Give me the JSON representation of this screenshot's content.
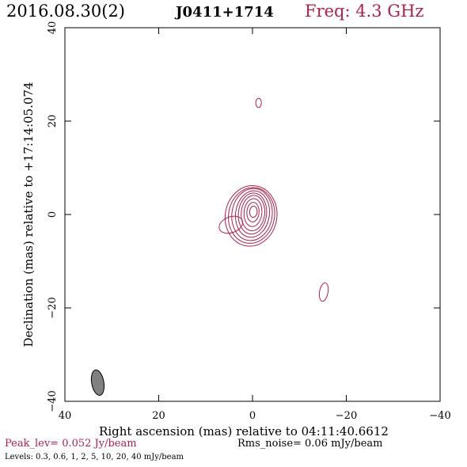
{
  "header": {
    "date": "2016.08.30(2)",
    "source": "J0411+1714",
    "freq": "Freq: 4.3 GHz"
  },
  "footer": {
    "peak": "Peak_lev=  0.052 Jy/beam",
    "rms": "Rms_noise= 0.06 mJy/beam",
    "levels": "Levels: 0.3, 0.6,    1,    2,    5,  10,   20,  40 mJy/beam"
  },
  "colors": {
    "contour": "#b0204a",
    "beam": "#808080"
  },
  "chart_data": {
    "type": "contour",
    "xlabel": "Right ascension (mas) relative to 04:11:40.6612",
    "ylabel": "Declination (mas) relative to +17:14:05.074",
    "xlim": [
      40,
      -40
    ],
    "ylim": [
      -40,
      40
    ],
    "x_ticks": [
      40,
      20,
      0,
      -20,
      -40
    ],
    "y_ticks": [
      -40,
      -20,
      0,
      20,
      40
    ],
    "x_tick_labels": [
      "40",
      "20",
      "0",
      "−20",
      "−40"
    ],
    "y_tick_labels": [
      "−40",
      "−20",
      "0",
      "20",
      "40"
    ],
    "beam": {
      "x": 33,
      "y": -36,
      "major_mas": 5.5,
      "minor_mas": 2.6,
      "pa_deg": -10
    },
    "contours": [
      {
        "x": 0.3,
        "y": -0.3,
        "rx": 5.5,
        "ry": 6.5,
        "rot": 10
      },
      {
        "x": 0.2,
        "y": -0.2,
        "rx": 4.9,
        "ry": 6.0,
        "rot": 10
      },
      {
        "x": 0.1,
        "y": 0.0,
        "rx": 4.3,
        "ry": 5.6,
        "rot": 8
      },
      {
        "x": 0.0,
        "y": 0.1,
        "rx": 3.6,
        "ry": 5.0,
        "rot": 8
      },
      {
        "x": 0.0,
        "y": 0.2,
        "rx": 3.0,
        "ry": 4.4,
        "rot": 6
      },
      {
        "x": -0.1,
        "y": 0.3,
        "rx": 2.5,
        "ry": 3.8,
        "rot": 5
      },
      {
        "x": -0.1,
        "y": 0.4,
        "rx": 1.9,
        "ry": 3.0,
        "rot": 5
      },
      {
        "x": -0.1,
        "y": 0.5,
        "rx": 1.3,
        "ry": 2.1,
        "rot": 4
      },
      {
        "x": -0.2,
        "y": 0.6,
        "rx": 0.8,
        "ry": 1.2,
        "rot": 4
      },
      {
        "x": 4.6,
        "y": -2.2,
        "rx": 2.6,
        "ry": 1.7,
        "rot": -20
      },
      {
        "x": -1.3,
        "y": 23.9,
        "rx": 0.6,
        "ry": 1.0,
        "rot": 0
      },
      {
        "x": -15.2,
        "y": -16.6,
        "rx": 0.9,
        "ry": 2.0,
        "rot": 10
      }
    ]
  }
}
